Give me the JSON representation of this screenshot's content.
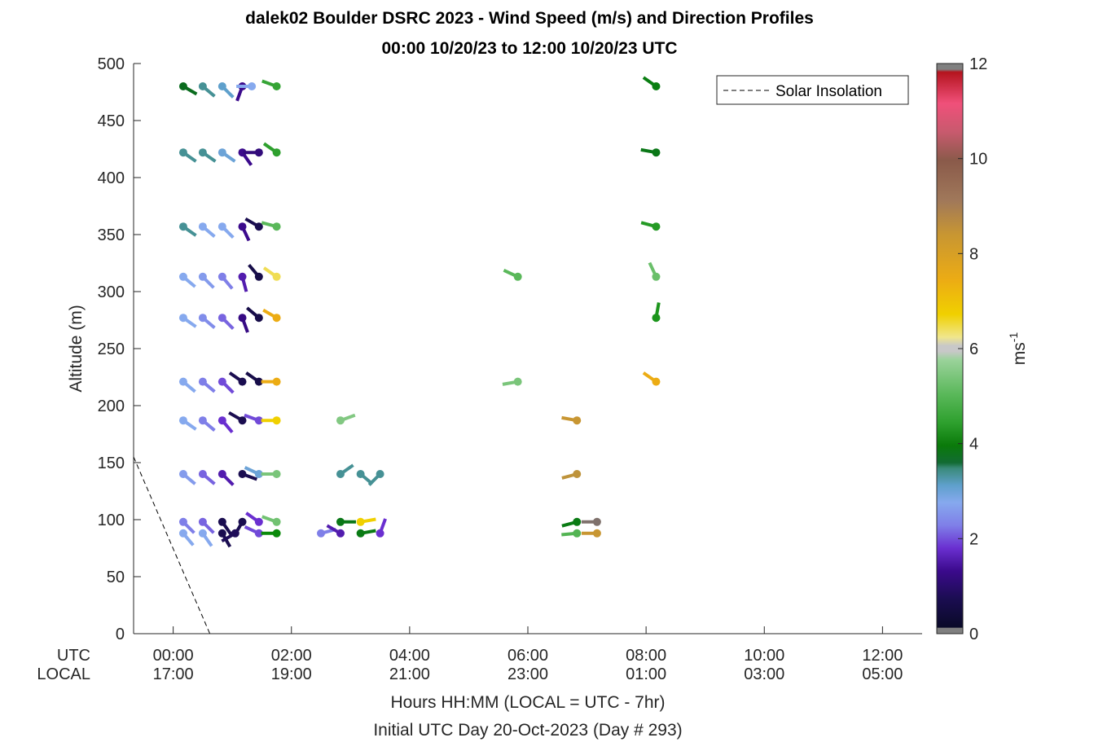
{
  "chart_data": {
    "type": "scatter",
    "title": "dalek02 Boulder DSRC 2023 - Wind Speed (m/s) and Direction Profiles",
    "subtitle": "00:00 10/20/23 to 12:00 10/20/23  UTC",
    "ylabel": "Altitude (m)",
    "xlabel": "Hours HH:MM  (LOCAL = UTC - 7hr)",
    "xlabel2": "Initial UTC Day 20-Oct-2023 (Day # 293)",
    "x_unit": "hours UTC",
    "xlim": [
      -0.67,
      12.67
    ],
    "ylim": [
      0,
      500
    ],
    "yticks": [
      0,
      50,
      100,
      150,
      200,
      250,
      300,
      350,
      400,
      450,
      500
    ],
    "xticks": [
      0,
      2,
      4,
      6,
      8,
      10,
      12
    ],
    "row_names": {
      "utc": "UTC",
      "local": "LOCAL"
    },
    "utc_tick_labels": [
      "00:00",
      "02:00",
      "04:00",
      "06:00",
      "08:00",
      "10:00",
      "12:00"
    ],
    "local_tick_labels": [
      "17:00",
      "19:00",
      "21:00",
      "23:00",
      "01:00",
      "03:00",
      "05:00"
    ],
    "colorbar": {
      "label": "ms",
      "exponent": "-1",
      "min": 0,
      "max": 12,
      "ticks": [
        0,
        2,
        4,
        6,
        8,
        10,
        12
      ]
    },
    "legend": {
      "position": "top-right",
      "entries": [
        "Solar Insolation"
      ]
    },
    "solar_insolation": [
      [
        -0.67,
        155
      ],
      [
        0.62,
        0
      ],
      [
        12.67,
        0
      ]
    ],
    "observations": [
      {
        "t": 0.17,
        "alt": 480,
        "speed": 3.2,
        "dir": 120
      },
      {
        "t": 0.5,
        "alt": 480,
        "speed": 2.6,
        "dir": 130
      },
      {
        "t": 0.83,
        "alt": 480,
        "speed": 2.4,
        "dir": 135
      },
      {
        "t": 1.17,
        "alt": 480,
        "speed": 1.3,
        "dir": 200
      },
      {
        "t": 1.33,
        "alt": 480,
        "speed": 2.1,
        "dir": 270
      },
      {
        "t": 1.75,
        "alt": 480,
        "speed": 4.5,
        "dir": 290
      },
      {
        "t": 8.17,
        "alt": 480,
        "speed": 3.7,
        "dir": 305
      },
      {
        "t": 0.17,
        "alt": 422,
        "speed": 2.6,
        "dir": 125
      },
      {
        "t": 0.5,
        "alt": 422,
        "speed": 2.6,
        "dir": 125
      },
      {
        "t": 0.83,
        "alt": 422,
        "speed": 2.3,
        "dir": 125
      },
      {
        "t": 1.17,
        "alt": 422,
        "speed": 1.3,
        "dir": 145
      },
      {
        "t": 1.45,
        "alt": 422,
        "speed": 1.1,
        "dir": 270
      },
      {
        "t": 1.75,
        "alt": 422,
        "speed": 4.4,
        "dir": 305
      },
      {
        "t": 8.17,
        "alt": 422,
        "speed": 3.5,
        "dir": 280
      },
      {
        "t": 0.17,
        "alt": 357,
        "speed": 2.6,
        "dir": 125
      },
      {
        "t": 0.5,
        "alt": 357,
        "speed": 2.1,
        "dir": 130
      },
      {
        "t": 0.83,
        "alt": 357,
        "speed": 2.1,
        "dir": 135
      },
      {
        "t": 1.17,
        "alt": 357,
        "speed": 1.3,
        "dir": 155
      },
      {
        "t": 1.45,
        "alt": 357,
        "speed": 0.6,
        "dir": 300
      },
      {
        "t": 1.75,
        "alt": 357,
        "speed": 5.0,
        "dir": 285
      },
      {
        "t": 8.17,
        "alt": 357,
        "speed": 4.3,
        "dir": 285
      },
      {
        "t": 0.17,
        "alt": 313,
        "speed": 2.1,
        "dir": 130
      },
      {
        "t": 0.5,
        "alt": 313,
        "speed": 2.0,
        "dir": 135
      },
      {
        "t": 0.83,
        "alt": 313,
        "speed": 1.8,
        "dir": 140
      },
      {
        "t": 1.17,
        "alt": 313,
        "speed": 1.4,
        "dir": 165
      },
      {
        "t": 1.45,
        "alt": 313,
        "speed": 0.5,
        "dir": 320
      },
      {
        "t": 1.75,
        "alt": 313,
        "speed": 6.5,
        "dir": 305
      },
      {
        "t": 5.83,
        "alt": 313,
        "speed": 5.0,
        "dir": 295
      },
      {
        "t": 8.17,
        "alt": 313,
        "speed": 5.2,
        "dir": 335
      },
      {
        "t": 0.17,
        "alt": 277,
        "speed": 2.1,
        "dir": 125
      },
      {
        "t": 0.5,
        "alt": 277,
        "speed": 1.9,
        "dir": 130
      },
      {
        "t": 0.83,
        "alt": 277,
        "speed": 1.7,
        "dir": 135
      },
      {
        "t": 1.17,
        "alt": 277,
        "speed": 1.2,
        "dir": 160
      },
      {
        "t": 1.45,
        "alt": 277,
        "speed": 0.5,
        "dir": 310
      },
      {
        "t": 1.75,
        "alt": 277,
        "speed": 7.5,
        "dir": 300
      },
      {
        "t": 8.17,
        "alt": 277,
        "speed": 4.2,
        "dir": 10
      },
      {
        "t": 0.17,
        "alt": 221,
        "speed": 2.1,
        "dir": 130
      },
      {
        "t": 0.5,
        "alt": 221,
        "speed": 1.8,
        "dir": 130
      },
      {
        "t": 0.83,
        "alt": 221,
        "speed": 1.6,
        "dir": 135
      },
      {
        "t": 1.17,
        "alt": 221,
        "speed": 0.6,
        "dir": 305
      },
      {
        "t": 1.45,
        "alt": 221,
        "speed": 0.5,
        "dir": 305
      },
      {
        "t": 1.75,
        "alt": 221,
        "speed": 7.5,
        "dir": 270
      },
      {
        "t": 5.83,
        "alt": 221,
        "speed": 5.4,
        "dir": 260
      },
      {
        "t": 8.17,
        "alt": 221,
        "speed": 7.5,
        "dir": 305
      },
      {
        "t": 0.17,
        "alt": 187,
        "speed": 2.1,
        "dir": 125
      },
      {
        "t": 0.5,
        "alt": 187,
        "speed": 1.8,
        "dir": 130
      },
      {
        "t": 0.83,
        "alt": 187,
        "speed": 1.5,
        "dir": 140
      },
      {
        "t": 1.17,
        "alt": 187,
        "speed": 0.6,
        "dir": 300
      },
      {
        "t": 1.45,
        "alt": 187,
        "speed": 1.6,
        "dir": 290
      },
      {
        "t": 1.75,
        "alt": 187,
        "speed": 6.8,
        "dir": 270
      },
      {
        "t": 2.83,
        "alt": 187,
        "speed": 5.5,
        "dir": 70
      },
      {
        "t": 6.83,
        "alt": 187,
        "speed": 8.5,
        "dir": 280
      },
      {
        "t": 0.17,
        "alt": 140,
        "speed": 2.0,
        "dir": 130
      },
      {
        "t": 0.5,
        "alt": 140,
        "speed": 1.7,
        "dir": 130
      },
      {
        "t": 0.83,
        "alt": 140,
        "speed": 1.4,
        "dir": 135
      },
      {
        "t": 1.17,
        "alt": 140,
        "speed": 0.6,
        "dir": 110
      },
      {
        "t": 1.45,
        "alt": 140,
        "speed": 2.3,
        "dir": 295
      },
      {
        "t": 1.75,
        "alt": 140,
        "speed": 5.4,
        "dir": 270
      },
      {
        "t": 2.83,
        "alt": 140,
        "speed": 2.6,
        "dir": 55
      },
      {
        "t": 3.17,
        "alt": 140,
        "speed": 2.6,
        "dir": 130
      },
      {
        "t": 3.5,
        "alt": 140,
        "speed": 2.6,
        "dir": 225
      },
      {
        "t": 6.83,
        "alt": 140,
        "speed": 8.6,
        "dir": 255
      },
      {
        "t": 0.17,
        "alt": 98,
        "speed": 1.8,
        "dir": 135
      },
      {
        "t": 0.5,
        "alt": 98,
        "speed": 1.7,
        "dir": 135
      },
      {
        "t": 0.83,
        "alt": 98,
        "speed": 0.6,
        "dir": 145
      },
      {
        "t": 1.17,
        "alt": 98,
        "speed": 0.6,
        "dir": 210
      },
      {
        "t": 1.45,
        "alt": 98,
        "speed": 1.5,
        "dir": 305
      },
      {
        "t": 1.75,
        "alt": 98,
        "speed": 5.3,
        "dir": 290
      },
      {
        "t": 2.83,
        "alt": 98,
        "speed": 3.5,
        "dir": 90
      },
      {
        "t": 3.17,
        "alt": 98,
        "speed": 6.8,
        "dir": 80
      },
      {
        "t": 6.83,
        "alt": 98,
        "speed": 3.6,
        "dir": 255
      },
      {
        "t": 7.17,
        "alt": 98,
        "speed": 9.5,
        "dir": 270
      },
      {
        "t": 0.17,
        "alt": 88,
        "speed": 2.1,
        "dir": 140
      },
      {
        "t": 0.5,
        "alt": 88,
        "speed": 2.1,
        "dir": 145
      },
      {
        "t": 0.83,
        "alt": 88,
        "speed": 0.6,
        "dir": 150
      },
      {
        "t": 1.05,
        "alt": 88,
        "speed": 0.7,
        "dir": 240
      },
      {
        "t": 1.45,
        "alt": 88,
        "speed": 1.6,
        "dir": 295
      },
      {
        "t": 1.75,
        "alt": 88,
        "speed": 4.0,
        "dir": 270
      },
      {
        "t": 2.5,
        "alt": 88,
        "speed": 1.8,
        "dir": 75
      },
      {
        "t": 2.83,
        "alt": 88,
        "speed": 1.4,
        "dir": 300
      },
      {
        "t": 3.17,
        "alt": 88,
        "speed": 3.6,
        "dir": 80
      },
      {
        "t": 3.5,
        "alt": 88,
        "speed": 1.5,
        "dir": 20
      },
      {
        "t": 6.83,
        "alt": 88,
        "speed": 4.9,
        "dir": 265
      },
      {
        "t": 7.17,
        "alt": 88,
        "speed": 8.5,
        "dir": 270
      }
    ]
  }
}
